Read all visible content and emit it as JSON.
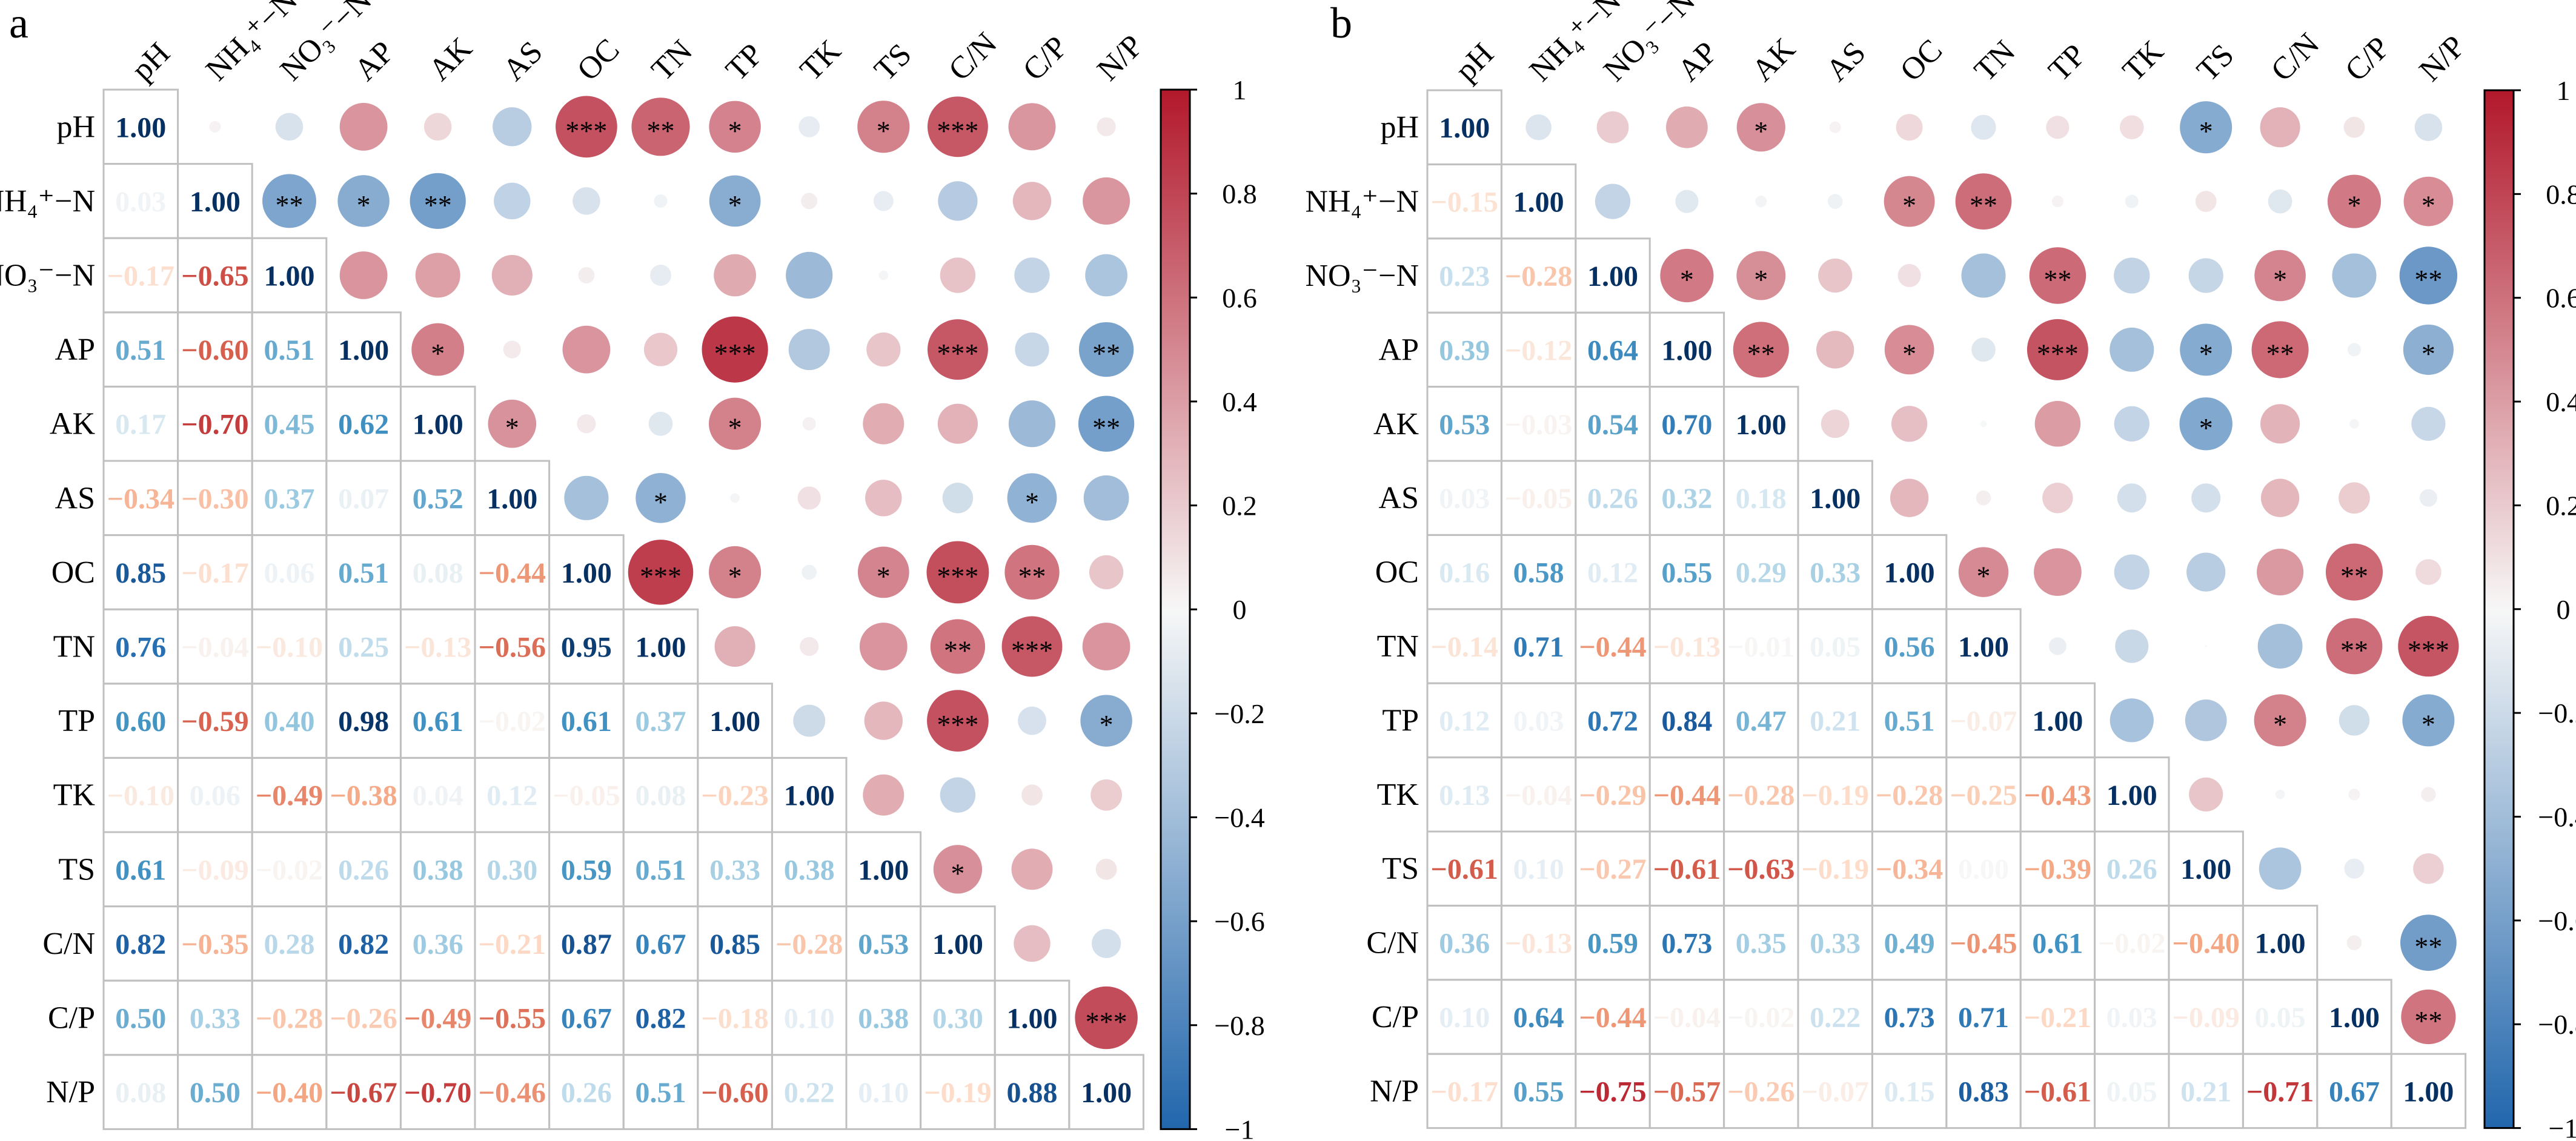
{
  "chart_data": [
    {
      "type": "heatmap",
      "panel_label": "a",
      "variables": [
        "pH",
        "NH₄⁺−N",
        "NO₃⁻−N",
        "AP",
        "AK",
        "AS",
        "OC",
        "TN",
        "TP",
        "TK",
        "TS",
        "C/N",
        "C/P",
        "N/P"
      ],
      "lower_triangle": [
        [
          1.0
        ],
        [
          0.03,
          1.0
        ],
        [
          -0.17,
          -0.65,
          1.0
        ],
        [
          0.51,
          -0.6,
          0.51,
          1.0
        ],
        [
          0.17,
          -0.7,
          0.45,
          0.62,
          1.0
        ],
        [
          -0.34,
          -0.3,
          0.37,
          0.07,
          0.52,
          1.0
        ],
        [
          0.85,
          -0.17,
          0.06,
          0.51,
          0.08,
          -0.44,
          1.0
        ],
        [
          0.76,
          -0.04,
          -0.1,
          0.25,
          -0.13,
          -0.56,
          0.95,
          1.0
        ],
        [
          0.6,
          -0.59,
          0.4,
          0.98,
          0.61,
          -0.02,
          0.61,
          0.37,
          1.0
        ],
        [
          -0.1,
          0.06,
          -0.49,
          -0.38,
          0.04,
          0.12,
          -0.05,
          0.08,
          -0.23,
          1.0
        ],
        [
          0.61,
          -0.09,
          -0.02,
          0.26,
          0.38,
          0.3,
          0.59,
          0.51,
          0.33,
          0.38,
          1.0
        ],
        [
          0.82,
          -0.35,
          0.28,
          0.82,
          0.36,
          -0.21,
          0.87,
          0.67,
          0.85,
          -0.28,
          0.53,
          1.0
        ],
        [
          0.5,
          0.33,
          -0.28,
          -0.26,
          -0.49,
          -0.55,
          0.67,
          0.82,
          -0.18,
          0.1,
          0.38,
          0.3,
          1.0
        ],
        [
          0.08,
          0.5,
          -0.4,
          -0.67,
          -0.7,
          -0.46,
          0.26,
          0.51,
          -0.6,
          0.22,
          0.1,
          -0.19,
          0.88,
          1.0
        ]
      ],
      "significance": [
        [
          "pH",
          "OC",
          "***"
        ],
        [
          "pH",
          "TN",
          "**"
        ],
        [
          "pH",
          "TP",
          "*"
        ],
        [
          "pH",
          "TS",
          "*"
        ],
        [
          "pH",
          "C/N",
          "***"
        ],
        [
          "NH₄⁺−N",
          "NO₃⁻−N",
          "**"
        ],
        [
          "NH₄⁺−N",
          "AP",
          "*"
        ],
        [
          "NH₄⁺−N",
          "AK",
          "**"
        ],
        [
          "NH₄⁺−N",
          "TP",
          "*"
        ],
        [
          "AP",
          "AK",
          "*"
        ],
        [
          "AP",
          "TP",
          "***"
        ],
        [
          "AP",
          "C/N",
          "***"
        ],
        [
          "AP",
          "N/P",
          "**"
        ],
        [
          "AK",
          "AS",
          "*"
        ],
        [
          "AK",
          "TP",
          "*"
        ],
        [
          "AK",
          "N/P",
          "**"
        ],
        [
          "AS",
          "TN",
          "*"
        ],
        [
          "AS",
          "C/P",
          "*"
        ],
        [
          "OC",
          "TN",
          "***"
        ],
        [
          "OC",
          "TP",
          "*"
        ],
        [
          "OC",
          "TS",
          "*"
        ],
        [
          "OC",
          "C/N",
          "***"
        ],
        [
          "OC",
          "C/P",
          "**"
        ],
        [
          "TN",
          "C/N",
          "**"
        ],
        [
          "TN",
          "C/P",
          "***"
        ],
        [
          "TP",
          "C/N",
          "***"
        ],
        [
          "TP",
          "N/P",
          "*"
        ],
        [
          "TS",
          "C/N",
          "*"
        ],
        [
          "C/P",
          "N/P",
          "***"
        ]
      ],
      "colorbar": {
        "range": [
          -1,
          1
        ],
        "ticks": [
          "1",
          "0.8",
          "0.6",
          "0.4",
          "0.2",
          "0",
          "−0.2",
          "−0.4",
          "−0.6",
          "−0.8",
          "−1"
        ],
        "colors": {
          "positive": "#B2182B",
          "zero": "#F7F7F7",
          "negative": "#2166AC"
        }
      }
    },
    {
      "type": "heatmap",
      "panel_label": "b",
      "variables": [
        "pH",
        "NH₄⁺−N",
        "NO₃⁻−N",
        "AP",
        "AK",
        "AS",
        "OC",
        "TN",
        "TP",
        "TK",
        "TS",
        "C/N",
        "C/P",
        "N/P"
      ],
      "lower_triangle": [
        [
          1.0
        ],
        [
          -0.15,
          1.0
        ],
        [
          0.23,
          -0.28,
          1.0
        ],
        [
          0.39,
          -0.12,
          0.64,
          1.0
        ],
        [
          0.53,
          -0.03,
          0.54,
          0.7,
          1.0
        ],
        [
          0.03,
          -0.05,
          0.26,
          0.32,
          0.18,
          1.0
        ],
        [
          0.16,
          0.58,
          0.12,
          0.55,
          0.29,
          0.33,
          1.0
        ],
        [
          -0.14,
          0.71,
          -0.44,
          -0.13,
          -0.01,
          0.05,
          0.56,
          1.0
        ],
        [
          0.12,
          0.03,
          0.72,
          0.84,
          0.47,
          0.21,
          0.51,
          -0.07,
          1.0
        ],
        [
          0.13,
          -0.04,
          -0.29,
          -0.44,
          -0.28,
          -0.19,
          -0.28,
          -0.25,
          -0.43,
          1.0
        ],
        [
          -0.61,
          0.1,
          -0.27,
          -0.61,
          -0.63,
          -0.19,
          -0.34,
          0.0,
          -0.39,
          0.26,
          1.0
        ],
        [
          0.36,
          -0.13,
          0.59,
          0.73,
          0.35,
          0.33,
          0.49,
          -0.45,
          0.61,
          -0.02,
          -0.4,
          1.0
        ],
        [
          0.1,
          0.64,
          -0.44,
          -0.04,
          -0.02,
          0.22,
          0.73,
          0.71,
          -0.21,
          0.03,
          -0.09,
          0.05,
          1.0
        ],
        [
          -0.17,
          0.55,
          -0.75,
          -0.57,
          -0.26,
          -0.07,
          0.15,
          0.83,
          -0.61,
          0.05,
          0.21,
          -0.71,
          0.67,
          1.0
        ]
      ],
      "significance": [
        [
          "pH",
          "AK",
          "*"
        ],
        [
          "pH",
          "TS",
          "*"
        ],
        [
          "NH₄⁺−N",
          "OC",
          "*"
        ],
        [
          "NH₄⁺−N",
          "TN",
          "**"
        ],
        [
          "NH₄⁺−N",
          "C/P",
          "*"
        ],
        [
          "NH₄⁺−N",
          "N/P",
          "*"
        ],
        [
          "NO₃⁻−N",
          "AP",
          "*"
        ],
        [
          "NO₃⁻−N",
          "AK",
          "*"
        ],
        [
          "NO₃⁻−N",
          "TP",
          "**"
        ],
        [
          "NO₃⁻−N",
          "C/N",
          "*"
        ],
        [
          "NO₃⁻−N",
          "N/P",
          "**"
        ],
        [
          "AP",
          "AK",
          "**"
        ],
        [
          "AP",
          "OC",
          "*"
        ],
        [
          "AP",
          "TP",
          "***"
        ],
        [
          "AP",
          "TS",
          "*"
        ],
        [
          "AP",
          "C/N",
          "**"
        ],
        [
          "AP",
          "N/P",
          "*"
        ],
        [
          "AK",
          "TS",
          "*"
        ],
        [
          "OC",
          "TN",
          "*"
        ],
        [
          "OC",
          "C/P",
          "**"
        ],
        [
          "TN",
          "C/P",
          "**"
        ],
        [
          "TN",
          "N/P",
          "***"
        ],
        [
          "TP",
          "C/N",
          "*"
        ],
        [
          "TP",
          "N/P",
          "*"
        ],
        [
          "C/N",
          "N/P",
          "**"
        ],
        [
          "C/P",
          "N/P",
          "**"
        ]
      ],
      "colorbar": {
        "range": [
          -1,
          1
        ],
        "ticks": [
          "1",
          "0.8",
          "0.6",
          "0.4",
          "0.2",
          "0",
          "−0.2",
          "−0.4",
          "−0.6",
          "−0.8",
          "−1"
        ],
        "colors": {
          "positive": "#B2182B",
          "zero": "#F7F7F7",
          "negative": "#2166AC"
        }
      }
    }
  ]
}
